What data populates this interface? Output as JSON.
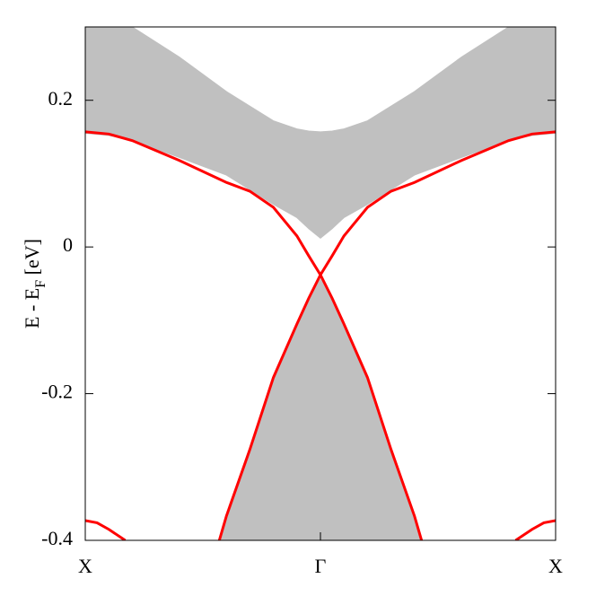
{
  "chart_data": {
    "type": "line",
    "ylabel": {
      "main": "E - E",
      "sub": "F",
      "unit": " [eV]"
    },
    "xlim": [
      -1,
      1
    ],
    "ylim": [
      -0.4,
      0.3
    ],
    "xticks": [
      {
        "value": -1,
        "label": "X"
      },
      {
        "value": 0,
        "label": "Γ"
      },
      {
        "value": 1,
        "label": "X"
      }
    ],
    "yticks": [
      -0.4,
      -0.2,
      0,
      0.2
    ],
    "series": [
      {
        "style": "band",
        "color": "#c0c0c0",
        "x": [
          -1,
          -0.9,
          -0.8,
          -0.6,
          -0.4,
          -0.2,
          -0.1,
          -0.05,
          0,
          0.05,
          0.1,
          0.2,
          0.4,
          0.6,
          0.8,
          0.9,
          1
        ],
        "values": [
          0.155,
          0.152,
          0.145,
          0.122,
          0.098,
          0.058,
          0.04,
          0.025,
          0.012,
          0.025,
          0.04,
          0.058,
          0.098,
          0.122,
          0.145,
          0.152,
          0.155
        ],
        "upper": [
          0.33,
          0.315,
          0.3,
          0.259,
          0.212,
          0.172,
          0.161,
          0.158,
          0.157,
          0.158,
          0.161,
          0.172,
          0.212,
          0.259,
          0.3,
          0.315,
          0.33
        ]
      },
      {
        "style": "area-below",
        "color": "#c0c0c0",
        "x": [
          -0.43,
          -0.4,
          -0.3,
          -0.2,
          -0.1,
          -0.05,
          0,
          0.05,
          0.1,
          0.2,
          0.3,
          0.4,
          0.43
        ],
        "values": [
          -0.4,
          -0.367,
          -0.276,
          -0.178,
          -0.105,
          -0.07,
          -0.044,
          -0.07,
          -0.105,
          -0.178,
          -0.276,
          -0.367,
          -0.4
        ]
      },
      {
        "style": "line",
        "color": "#ff0000",
        "x": [
          -1,
          -0.9,
          -0.8,
          -0.6,
          -0.4,
          -0.3,
          -0.2,
          -0.1,
          -0.05,
          0,
          0.05,
          0.1,
          0.2,
          0.3,
          0.4,
          0.43
        ],
        "values": [
          0.157,
          0.154,
          0.145,
          0.118,
          0.088,
          0.076,
          0.054,
          0.015,
          -0.012,
          -0.038,
          -0.07,
          -0.105,
          -0.178,
          -0.276,
          -0.367,
          -0.4
        ]
      },
      {
        "style": "line",
        "color": "#ff0000",
        "x": [
          1,
          0.9,
          0.8,
          0.6,
          0.4,
          0.3,
          0.2,
          0.1,
          0.05,
          0,
          -0.05,
          -0.1,
          -0.2,
          -0.3,
          -0.4,
          -0.43
        ],
        "values": [
          0.157,
          0.154,
          0.145,
          0.118,
          0.088,
          0.076,
          0.054,
          0.015,
          -0.012,
          -0.038,
          -0.07,
          -0.105,
          -0.178,
          -0.276,
          -0.367,
          -0.4
        ]
      },
      {
        "style": "line",
        "color": "#ff0000",
        "x": [
          -1,
          -0.95,
          -0.9,
          -0.83,
          0,
          0.83,
          0.9,
          0.95,
          1
        ],
        "values": [
          -0.373,
          -0.376,
          -0.385,
          -0.4,
          null,
          -0.4,
          -0.385,
          -0.376,
          -0.373
        ]
      }
    ]
  }
}
